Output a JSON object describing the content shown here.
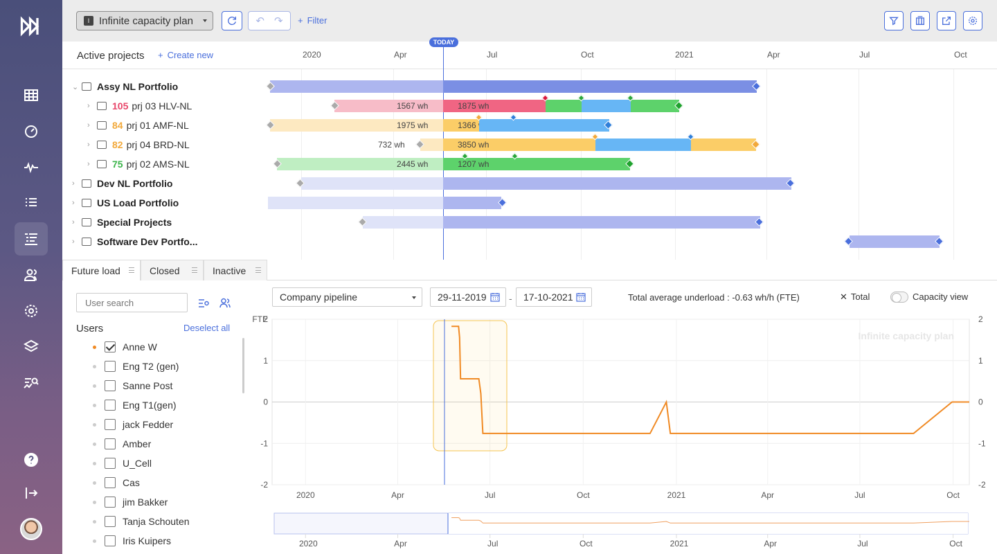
{
  "toolbar": {
    "plan_label": "Infinite capacity plan",
    "filter_label": "Filter"
  },
  "gantt": {
    "header_title": "Active projects",
    "create_new": "Create new",
    "today_label": "TODAY",
    "timeline": [
      "2020",
      "Apr",
      "Jul",
      "Oct",
      "2021",
      "Apr",
      "Jul",
      "Oct"
    ],
    "rows": [
      {
        "name": "Assy NL Portfolio",
        "type": "portfolio",
        "expanded": true
      },
      {
        "name": "prj 03 HLV-NL",
        "type": "project",
        "score": "105",
        "score_color": "#e8466a",
        "hours_before": "1567 wh",
        "hours_after": "1875 wh"
      },
      {
        "name": "prj 01 AMF-NL",
        "type": "project",
        "score": "84",
        "score_color": "#f2a93b",
        "hours_before": "1975 wh",
        "hours_after": "1366 wh"
      },
      {
        "name": "prj 04 BRD-NL",
        "type": "project",
        "score": "82",
        "score_color": "#f2a93b",
        "hours_before": "732 wh",
        "hours_after": "3850 wh"
      },
      {
        "name": "prj 02 AMS-NL",
        "type": "project",
        "score": "75",
        "score_color": "#3cb44b",
        "hours_before": "2445 wh",
        "hours_after": "1207 wh"
      },
      {
        "name": "Dev NL Portfolio",
        "type": "portfolio"
      },
      {
        "name": "US Load Portfolio",
        "type": "portfolio"
      },
      {
        "name": "Special Projects",
        "type": "portfolio"
      },
      {
        "name": "Software Dev Portfo...",
        "type": "portfolio"
      }
    ]
  },
  "tabs": [
    "Future load",
    "Closed",
    "Inactive"
  ],
  "users_panel": {
    "search_placeholder": "User search",
    "title": "Users",
    "deselect_all": "Deselect all",
    "users": [
      {
        "name": "Anne W",
        "checked": true,
        "dot": "#f08a24"
      },
      {
        "name": "Eng T2 (gen)",
        "checked": false,
        "dot": "#ccc"
      },
      {
        "name": "Sanne Post",
        "checked": false,
        "dot": "#ccc"
      },
      {
        "name": "Eng T1(gen)",
        "checked": false,
        "dot": "#ccc"
      },
      {
        "name": "jack Fedder",
        "checked": false,
        "dot": "#ccc"
      },
      {
        "name": "Amber",
        "checked": false,
        "dot": "#ccc"
      },
      {
        "name": "U_Cell",
        "checked": false,
        "dot": "#ccc"
      },
      {
        "name": "Cas",
        "checked": false,
        "dot": "#ccc"
      },
      {
        "name": "jim Bakker",
        "checked": false,
        "dot": "#ccc"
      },
      {
        "name": "Tanja Schouten",
        "checked": false,
        "dot": "#ccc"
      },
      {
        "name": "Iris Kuipers",
        "checked": false,
        "dot": "#ccc"
      }
    ]
  },
  "chart_panel": {
    "pipeline_select": "Company pipeline",
    "date_from": "29-11-2019",
    "date_to": "17-10-2021",
    "date_sep": "-",
    "total_avg": "Total average underload : -0.63 wh/h (FTE)",
    "total_label": "Total",
    "capacity_view": "Capacity view",
    "watermark": "Infinite capacity plan",
    "ylabel": "FTE",
    "overview_labels": [
      "2020",
      "Apr",
      "Jul",
      "Oct",
      "2021",
      "Apr",
      "Jul",
      "Oct"
    ]
  },
  "chart_data": {
    "type": "line",
    "title": "",
    "ylabel": "FTE",
    "ylim": [
      -2,
      2
    ],
    "y_ticks": [
      -2,
      -1,
      0,
      1,
      2
    ],
    "x_ticks": [
      "2020",
      "Apr",
      "Jul",
      "Oct",
      "2021",
      "Apr",
      "Jul",
      "Oct"
    ],
    "color": "#f08a24",
    "series": [
      {
        "values": [
          [
            "2020-05-24",
            1.83
          ],
          [
            "2020-05-31",
            1.83
          ],
          [
            "2020-06-01",
            1.56
          ],
          [
            "2020-06-02",
            0.56
          ],
          [
            "2020-06-20",
            0.56
          ],
          [
            "2020-06-22",
            0.2
          ],
          [
            "2020-06-24",
            -0.76
          ],
          [
            "2020-12-06",
            -0.76
          ],
          [
            "2020-12-22",
            0.0
          ],
          [
            "2020-12-26",
            -0.76
          ],
          [
            "2021-08-23",
            -0.76
          ],
          [
            "2021-09-30",
            0.0
          ],
          [
            "2021-10-17",
            0.0
          ]
        ]
      }
    ]
  }
}
